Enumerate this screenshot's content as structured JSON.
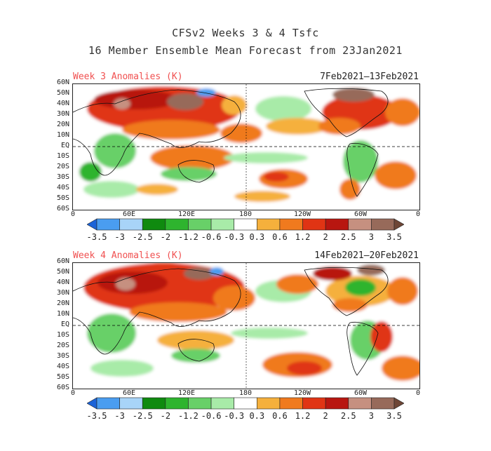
{
  "title": {
    "line1": "CFSv2 Weeks 3 & 4 Tsfc",
    "line2": "16 Member Ensemble Mean Forecast from 23Jan2021"
  },
  "panels": [
    {
      "label": "Week 3 Anomalies (K)",
      "dates": "7Feb2021–13Feb2021"
    },
    {
      "label": "Week 4 Anomalies (K)",
      "dates": "14Feb2021–20Feb2021"
    }
  ],
  "axes": {
    "lat_labels": [
      "60N",
      "50N",
      "40N",
      "30N",
      "20N",
      "10N",
      "EQ",
      "10S",
      "20S",
      "30S",
      "40S",
      "50S",
      "60S"
    ],
    "lon_labels": [
      "0",
      "60E",
      "120E",
      "180",
      "120W",
      "60W",
      "0"
    ]
  },
  "colorbar": {
    "labels": [
      "-3.5",
      "-3",
      "-2.5",
      "-2",
      "-1.2",
      "-0.6",
      "-0.3",
      "0.3",
      "0.6",
      "1.2",
      "2",
      "2.5",
      "3",
      "3.5"
    ],
    "colors": [
      "#1c64d8",
      "#4a9df0",
      "#a8d4f8",
      "#0f8a0f",
      "#2eb42e",
      "#68d068",
      "#a8eba8",
      "#ffffff",
      "#f5b03c",
      "#f07a1e",
      "#e03414",
      "#b81610",
      "#c69080",
      "#976a5a",
      "#6e4636"
    ]
  },
  "regions": {
    "week3": [
      {
        "name": "asia-warm",
        "anomaly": "2 to 3.5"
      },
      {
        "name": "north-america-warm",
        "anomaly": "2 to 3.5"
      },
      {
        "name": "eastern-pacific-south-warm",
        "anomaly": "0.6 to 2"
      },
      {
        "name": "pacific-equator-cool",
        "anomaly": "-0.3 to -1.2"
      }
    ],
    "week4": [
      {
        "name": "asia-warm",
        "anomaly": "2 to 3.5"
      },
      {
        "name": "north-america-cool",
        "anomaly": "-1.2 to -2"
      },
      {
        "name": "south-america-warm",
        "anomaly": "1.2 to 2.5"
      },
      {
        "name": "southern-ocean-warm",
        "anomaly": "0.6 to 1.2"
      }
    ]
  }
}
